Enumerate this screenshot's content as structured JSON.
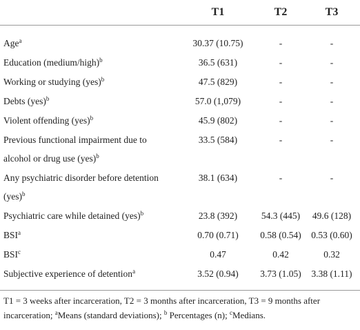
{
  "table": {
    "header": [
      "T1",
      "T2",
      "T3"
    ],
    "rows": [
      {
        "label": "Age",
        "sup": "a",
        "cells": [
          "30.37 (10.75)",
          "-",
          "-"
        ]
      },
      {
        "label": "Education (medium/high)",
        "sup": "b",
        "cells": [
          "36.5 (631)",
          "-",
          "-"
        ]
      },
      {
        "label": "Working or studying (yes)",
        "sup": "b",
        "cells": [
          "47.5 (829)",
          "-",
          "-"
        ]
      },
      {
        "label": "Debts (yes)",
        "sup": "b",
        "cells": [
          "57.0 (1,079)",
          "-",
          "-"
        ]
      },
      {
        "label": "Violent offending (yes)",
        "sup": "b",
        "cells": [
          "45.9 (802)",
          "-",
          "-"
        ]
      },
      {
        "label": "Previous functional impairment due to alcohol or drug use (yes)",
        "sup": "b",
        "cells": [
          "33.5 (584)",
          "-",
          "-"
        ]
      },
      {
        "label": "Any psychiatric disorder before detention (yes)",
        "sup": "b",
        "cells": [
          "38.1 (634)",
          "-",
          "-"
        ]
      },
      {
        "label": "Psychiatric care while detained (yes)",
        "sup": "b",
        "cells": [
          "23.8 (392)",
          "54.3 (445)",
          "49.6 (128)"
        ]
      },
      {
        "label": "BSI",
        "sup": "a",
        "cells": [
          "0.70 (0.71)",
          "0.58 (0.54)",
          "0.53 (0.60)"
        ]
      },
      {
        "label": "BSI",
        "sup": "c",
        "cells": [
          "0.47",
          "0.42",
          "0.32"
        ]
      },
      {
        "label": "Subjective experience of detention",
        "sup": "a",
        "cells": [
          "3.52 (0.94)",
          "3.73 (1.05)",
          "3.38 (1.11)"
        ]
      }
    ],
    "footnote": [
      {
        "text": "T1 = 3 weeks after incarceration, T2 = 3 months after incarceration, T3 = 9 months after incarceration; "
      },
      {
        "sup": "a"
      },
      {
        "text": "Means (standard deviations); "
      },
      {
        "sup": "b"
      },
      {
        "text": " Percentages (n); "
      },
      {
        "sup": "c"
      },
      {
        "text": "Medians."
      }
    ]
  }
}
